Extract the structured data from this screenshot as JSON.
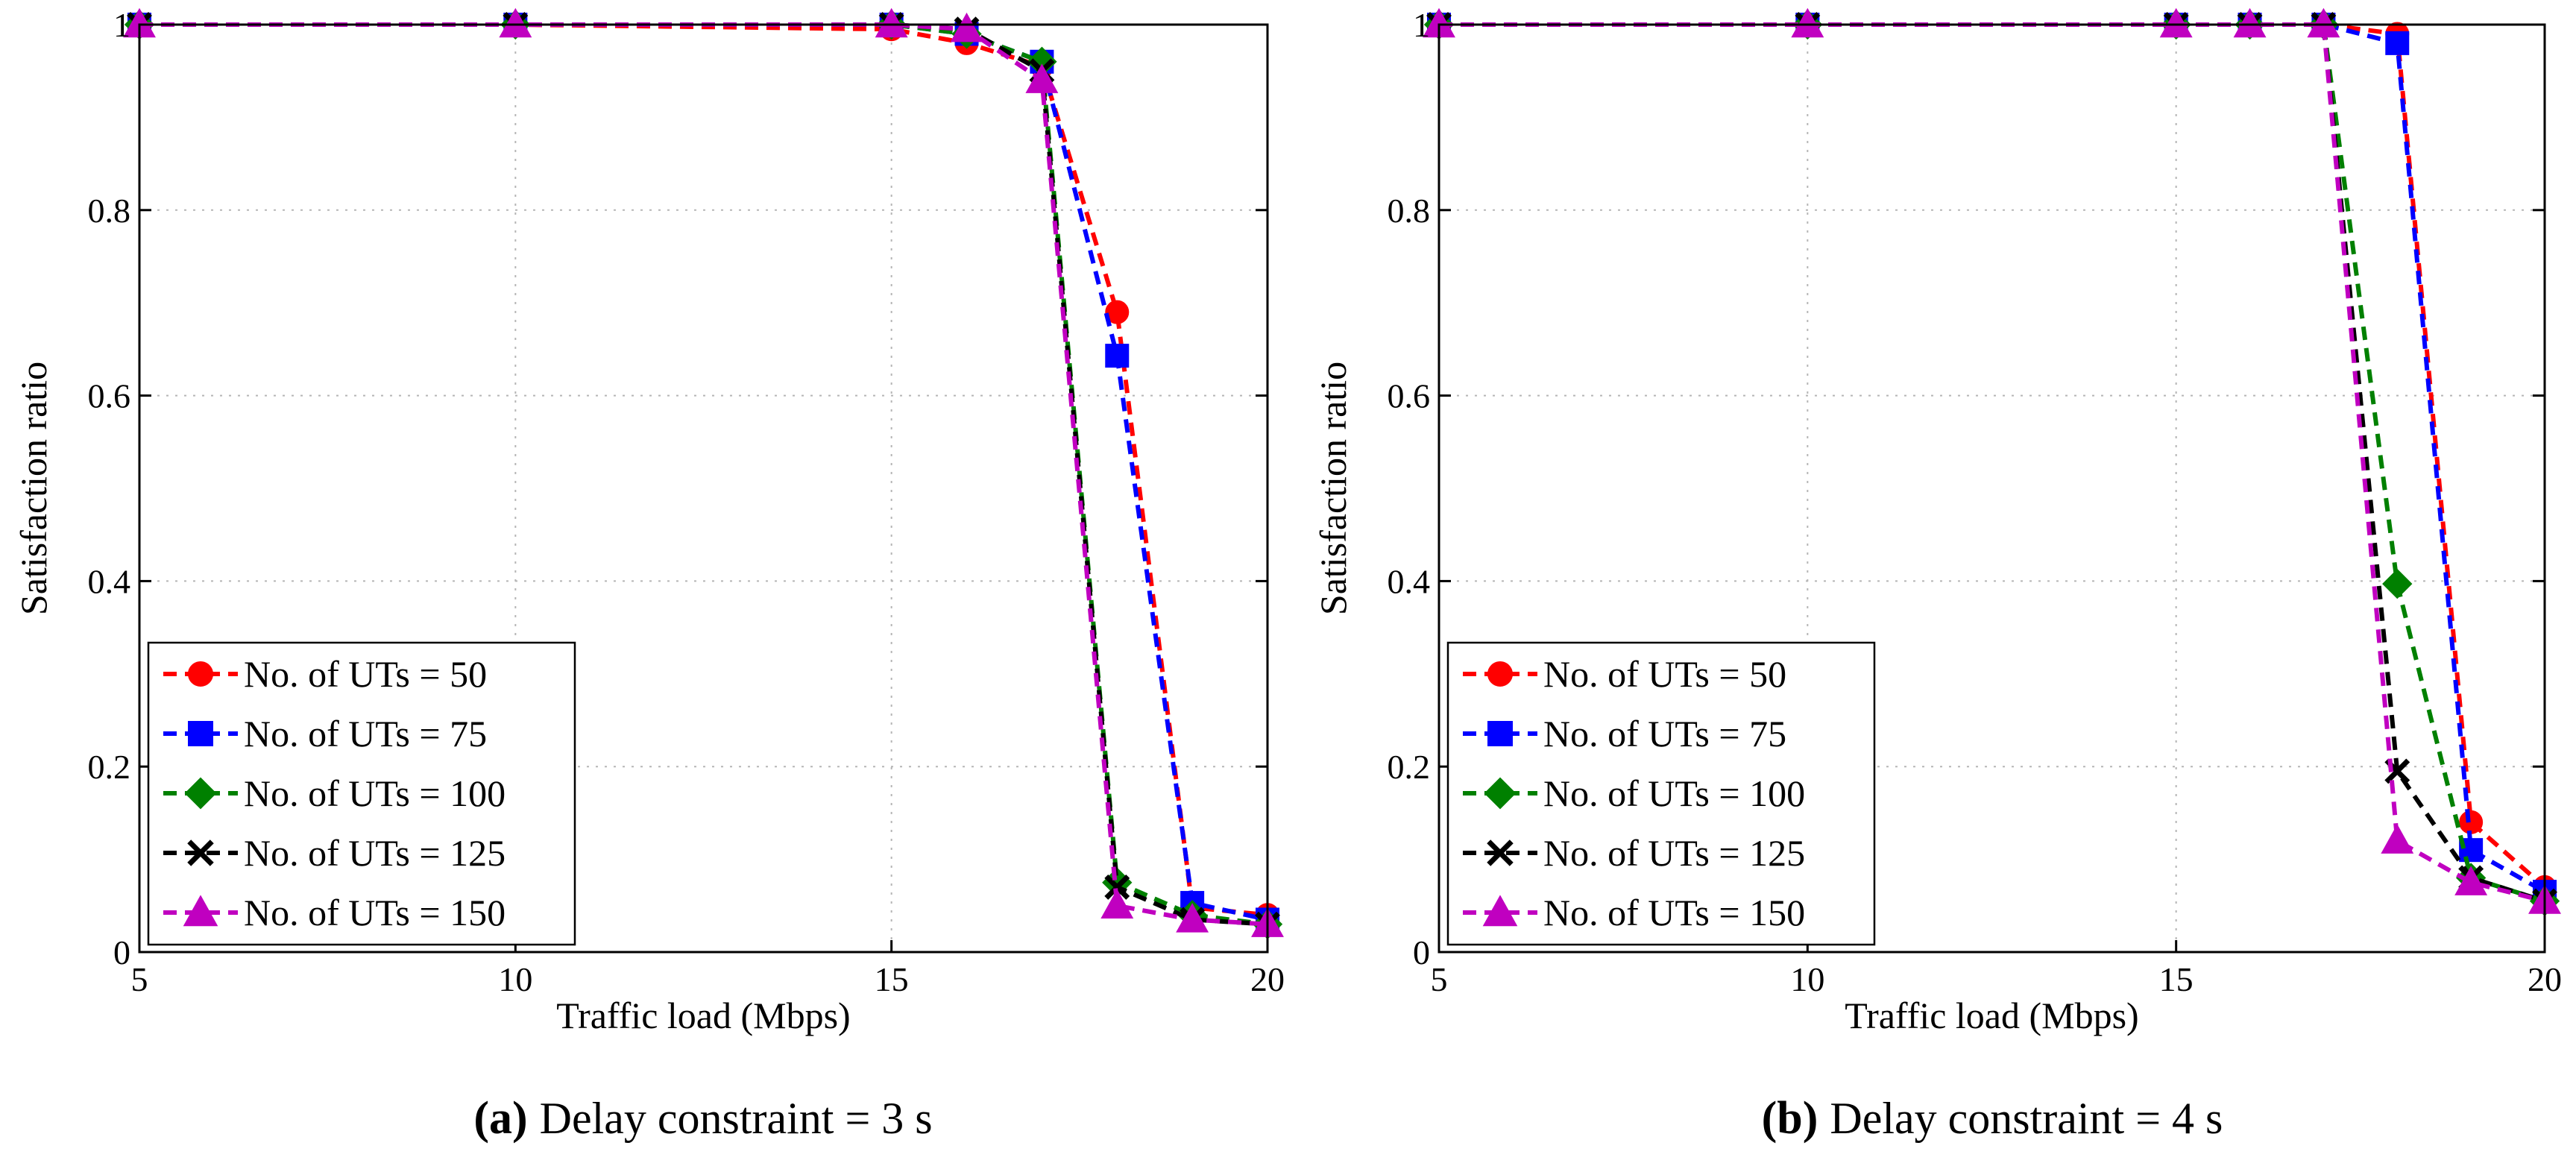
{
  "chart_data": [
    {
      "type": "line",
      "caption_letter": "(a)",
      "caption_text": "Delay constraint = 3 s",
      "xlabel": "Traffic load (Mbps)",
      "ylabel": "Satisfaction ratio",
      "xlim": [
        5,
        20
      ],
      "ylim": [
        0,
        1
      ],
      "xticks": [
        5,
        10,
        15,
        20
      ],
      "yticks": [
        0,
        0.2,
        0.4,
        0.6,
        0.8,
        1
      ],
      "ytick_labels": [
        "0",
        "0.2",
        "0.4",
        "0.6",
        "0.8",
        "1"
      ],
      "grid": true,
      "legend_position": "bottom-left",
      "x": [
        5,
        10,
        15,
        16,
        17,
        18,
        19,
        20
      ],
      "series": [
        {
          "name": "No. of UTs = 50",
          "color": "#ff0000",
          "marker": "circle",
          "values": [
            1,
            1,
            0.995,
            0.98,
            0.955,
            0.69,
            0.048,
            0.04
          ]
        },
        {
          "name": "No. of UTs = 75",
          "color": "#0000ff",
          "marker": "square",
          "values": [
            1,
            1,
            1,
            0.99,
            0.96,
            0.643,
            0.053,
            0.035
          ]
        },
        {
          "name": "No. of UTs = 100",
          "color": "#008000",
          "marker": "diamond",
          "values": [
            1,
            1,
            1,
            0.99,
            0.96,
            0.075,
            0.04,
            0.03
          ]
        },
        {
          "name": "No. of UTs = 125",
          "color": "#000000",
          "marker": "x",
          "values": [
            1,
            1,
            1,
            0.995,
            0.95,
            0.07,
            0.035,
            0.03
          ]
        },
        {
          "name": "No. of UTs = 150",
          "color": "#c000c0",
          "marker": "triangle",
          "values": [
            1,
            1,
            1,
            0.995,
            0.94,
            0.05,
            0.035,
            0.03
          ]
        }
      ]
    },
    {
      "type": "line",
      "caption_letter": "(b)",
      "caption_text": "Delay constraint = 4 s",
      "xlabel": "Traffic load (Mbps)",
      "ylabel": "Satisfaction ratio",
      "xlim": [
        5,
        20
      ],
      "ylim": [
        0,
        1
      ],
      "xticks": [
        5,
        10,
        15,
        20
      ],
      "yticks": [
        0,
        0.2,
        0.4,
        0.6,
        0.8,
        1
      ],
      "ytick_labels": [
        "0",
        "0.2",
        "0.4",
        "0.6",
        "0.8",
        "1"
      ],
      "grid": true,
      "legend_position": "bottom-left",
      "x": [
        5,
        10,
        15,
        16,
        17,
        18,
        19,
        20
      ],
      "series": [
        {
          "name": "No. of UTs = 50",
          "color": "#ff0000",
          "marker": "circle",
          "values": [
            1,
            1,
            1,
            1,
            1,
            0.99,
            0.14,
            0.07
          ]
        },
        {
          "name": "No. of UTs = 75",
          "color": "#0000ff",
          "marker": "square",
          "values": [
            1,
            1,
            1,
            1,
            1,
            0.98,
            0.11,
            0.065
          ]
        },
        {
          "name": "No. of UTs = 100",
          "color": "#008000",
          "marker": "diamond",
          "values": [
            1,
            1,
            1,
            1,
            1,
            0.397,
            0.08,
            0.055
          ]
        },
        {
          "name": "No. of UTs = 125",
          "color": "#000000",
          "marker": "x",
          "values": [
            1,
            1,
            1,
            1,
            1,
            0.195,
            0.08,
            0.055
          ]
        },
        {
          "name": "No. of UTs = 150",
          "color": "#c000c0",
          "marker": "triangle",
          "values": [
            1,
            1,
            1,
            1,
            1,
            0.12,
            0.075,
            0.055
          ]
        }
      ]
    }
  ]
}
